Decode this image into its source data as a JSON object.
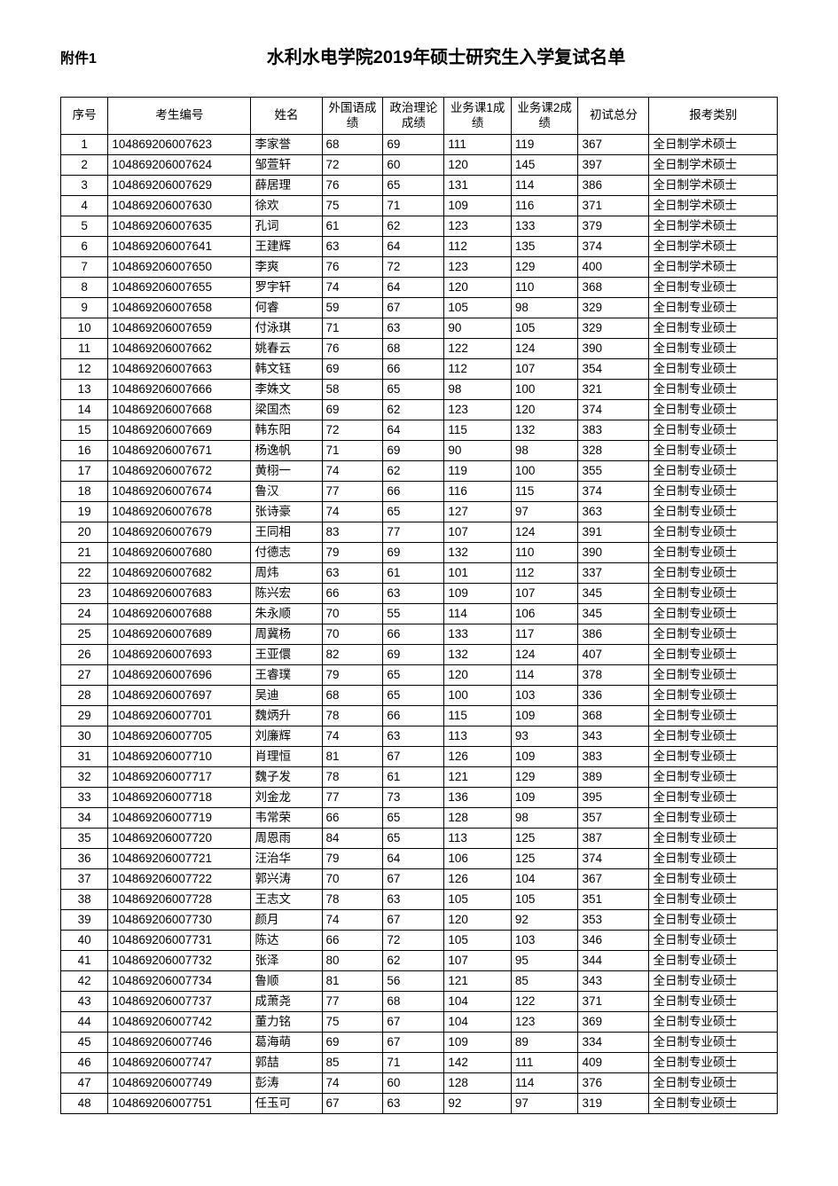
{
  "attachment_label": "附件1",
  "title": "水利水电学院2019年硕士研究生入学复试名单",
  "columns": [
    "序号",
    "考生编号",
    "姓名",
    "外国语成绩",
    "政治理论成绩",
    "业务课1成绩",
    "业务课2成绩",
    "初试总分",
    "报考类别"
  ],
  "rows": [
    [
      "1",
      "104869206007623",
      "李家誉",
      "68",
      "69",
      "111",
      "119",
      "367",
      "全日制学术硕士"
    ],
    [
      "2",
      "104869206007624",
      "邹萱轩",
      "72",
      "60",
      "120",
      "145",
      "397",
      "全日制学术硕士"
    ],
    [
      "3",
      "104869206007629",
      "薛居理",
      "76",
      "65",
      "131",
      "114",
      "386",
      "全日制学术硕士"
    ],
    [
      "4",
      "104869206007630",
      "徐欢",
      "75",
      "71",
      "109",
      "116",
      "371",
      "全日制学术硕士"
    ],
    [
      "5",
      "104869206007635",
      "孔词",
      "61",
      "62",
      "123",
      "133",
      "379",
      "全日制学术硕士"
    ],
    [
      "6",
      "104869206007641",
      "王建辉",
      "63",
      "64",
      "112",
      "135",
      "374",
      "全日制学术硕士"
    ],
    [
      "7",
      "104869206007650",
      "李爽",
      "76",
      "72",
      "123",
      "129",
      "400",
      "全日制学术硕士"
    ],
    [
      "8",
      "104869206007655",
      "罗宇轩",
      "74",
      "64",
      "120",
      "110",
      "368",
      "全日制专业硕士"
    ],
    [
      "9",
      "104869206007658",
      "何睿",
      "59",
      "67",
      "105",
      "98",
      "329",
      "全日制专业硕士"
    ],
    [
      "10",
      "104869206007659",
      "付泳琪",
      "71",
      "63",
      "90",
      "105",
      "329",
      "全日制专业硕士"
    ],
    [
      "11",
      "104869206007662",
      "姚春云",
      "76",
      "68",
      "122",
      "124",
      "390",
      "全日制专业硕士"
    ],
    [
      "12",
      "104869206007663",
      "韩文钰",
      "69",
      "66",
      "112",
      "107",
      "354",
      "全日制专业硕士"
    ],
    [
      "13",
      "104869206007666",
      "李姝文",
      "58",
      "65",
      "98",
      "100",
      "321",
      "全日制专业硕士"
    ],
    [
      "14",
      "104869206007668",
      "梁国杰",
      "69",
      "62",
      "123",
      "120",
      "374",
      "全日制专业硕士"
    ],
    [
      "15",
      "104869206007669",
      "韩东阳",
      "72",
      "64",
      "115",
      "132",
      "383",
      "全日制专业硕士"
    ],
    [
      "16",
      "104869206007671",
      "杨逸帆",
      "71",
      "69",
      "90",
      "98",
      "328",
      "全日制专业硕士"
    ],
    [
      "17",
      "104869206007672",
      "黄栩一",
      "74",
      "62",
      "119",
      "100",
      "355",
      "全日制专业硕士"
    ],
    [
      "18",
      "104869206007674",
      "鲁汉",
      "77",
      "66",
      "116",
      "115",
      "374",
      "全日制专业硕士"
    ],
    [
      "19",
      "104869206007678",
      "张诗豪",
      "74",
      "65",
      "127",
      "97",
      "363",
      "全日制专业硕士"
    ],
    [
      "20",
      "104869206007679",
      "王同相",
      "83",
      "77",
      "107",
      "124",
      "391",
      "全日制专业硕士"
    ],
    [
      "21",
      "104869206007680",
      "付德志",
      "79",
      "69",
      "132",
      "110",
      "390",
      "全日制专业硕士"
    ],
    [
      "22",
      "104869206007682",
      "周炜",
      "63",
      "61",
      "101",
      "112",
      "337",
      "全日制专业硕士"
    ],
    [
      "23",
      "104869206007683",
      "陈兴宏",
      "66",
      "63",
      "109",
      "107",
      "345",
      "全日制专业硕士"
    ],
    [
      "24",
      "104869206007688",
      "朱永顺",
      "70",
      "55",
      "114",
      "106",
      "345",
      "全日制专业硕士"
    ],
    [
      "25",
      "104869206007689",
      "周冀杨",
      "70",
      "66",
      "133",
      "117",
      "386",
      "全日制专业硕士"
    ],
    [
      "26",
      "104869206007693",
      "王亚儇",
      "82",
      "69",
      "132",
      "124",
      "407",
      "全日制专业硕士"
    ],
    [
      "27",
      "104869206007696",
      "王睿璞",
      "79",
      "65",
      "120",
      "114",
      "378",
      "全日制专业硕士"
    ],
    [
      "28",
      "104869206007697",
      "吴迪",
      "68",
      "65",
      "100",
      "103",
      "336",
      "全日制专业硕士"
    ],
    [
      "29",
      "104869206007701",
      "魏炳升",
      "78",
      "66",
      "115",
      "109",
      "368",
      "全日制专业硕士"
    ],
    [
      "30",
      "104869206007705",
      "刘廉辉",
      "74",
      "63",
      "113",
      "93",
      "343",
      "全日制专业硕士"
    ],
    [
      "31",
      "104869206007710",
      "肖理恒",
      "81",
      "67",
      "126",
      "109",
      "383",
      "全日制专业硕士"
    ],
    [
      "32",
      "104869206007717",
      "魏子发",
      "78",
      "61",
      "121",
      "129",
      "389",
      "全日制专业硕士"
    ],
    [
      "33",
      "104869206007718",
      "刘金龙",
      "77",
      "73",
      "136",
      "109",
      "395",
      "全日制专业硕士"
    ],
    [
      "34",
      "104869206007719",
      "韦常荣",
      "66",
      "65",
      "128",
      "98",
      "357",
      "全日制专业硕士"
    ],
    [
      "35",
      "104869206007720",
      "周恩雨",
      "84",
      "65",
      "113",
      "125",
      "387",
      "全日制专业硕士"
    ],
    [
      "36",
      "104869206007721",
      "汪治华",
      "79",
      "64",
      "106",
      "125",
      "374",
      "全日制专业硕士"
    ],
    [
      "37",
      "104869206007722",
      "郭兴涛",
      "70",
      "67",
      "126",
      "104",
      "367",
      "全日制专业硕士"
    ],
    [
      "38",
      "104869206007728",
      "王志文",
      "78",
      "63",
      "105",
      "105",
      "351",
      "全日制专业硕士"
    ],
    [
      "39",
      "104869206007730",
      "颜月",
      "74",
      "67",
      "120",
      "92",
      "353",
      "全日制专业硕士"
    ],
    [
      "40",
      "104869206007731",
      "陈达",
      "66",
      "72",
      "105",
      "103",
      "346",
      "全日制专业硕士"
    ],
    [
      "41",
      "104869206007732",
      "张泽",
      "80",
      "62",
      "107",
      "95",
      "344",
      "全日制专业硕士"
    ],
    [
      "42",
      "104869206007734",
      "鲁顺",
      "81",
      "56",
      "121",
      "85",
      "343",
      "全日制专业硕士"
    ],
    [
      "43",
      "104869206007737",
      "成萧尧",
      "77",
      "68",
      "104",
      "122",
      "371",
      "全日制专业硕士"
    ],
    [
      "44",
      "104869206007742",
      "董力铭",
      "75",
      "67",
      "104",
      "123",
      "369",
      "全日制专业硕士"
    ],
    [
      "45",
      "104869206007746",
      "葛海萌",
      "69",
      "67",
      "109",
      "89",
      "334",
      "全日制专业硕士"
    ],
    [
      "46",
      "104869206007747",
      "郭喆",
      "85",
      "71",
      "142",
      "111",
      "409",
      "全日制专业硕士"
    ],
    [
      "47",
      "104869206007749",
      "彭涛",
      "74",
      "60",
      "128",
      "114",
      "376",
      "全日制专业硕士"
    ],
    [
      "48",
      "104869206007751",
      "任玉可",
      "67",
      "63",
      "92",
      "97",
      "319",
      "全日制专业硕士"
    ]
  ],
  "col_classes": [
    "c-idx",
    "c-id",
    "c-name",
    "c-s1",
    "c-s2",
    "c-s3",
    "c-s4",
    "c-total",
    "c-cat"
  ],
  "center_cols": [
    0
  ]
}
